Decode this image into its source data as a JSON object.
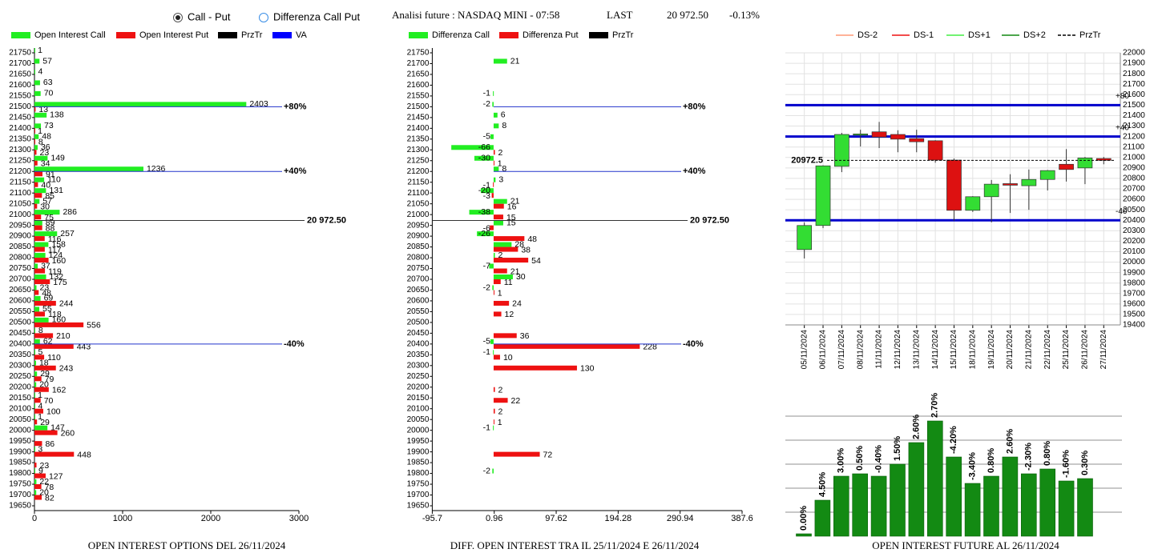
{
  "header": {
    "options": [
      "Call - Put",
      "Differenza Call Put"
    ],
    "selected": 0,
    "title": "Analisi future : NASDAQ MINI - 07:58",
    "last_label": "LAST",
    "last": "20 972.50",
    "change": "-0.13%"
  },
  "chart_data": [
    {
      "type": "hbar",
      "title": "OPEN INTEREST OPTIONS DEL 26/11/2024",
      "categories": [
        21750,
        21700,
        21650,
        21600,
        21550,
        21500,
        21450,
        21400,
        21350,
        21300,
        21250,
        21200,
        21150,
        21100,
        21050,
        21000,
        20950,
        20900,
        20850,
        20800,
        20750,
        20700,
        20650,
        20600,
        20550,
        20500,
        20450,
        20400,
        20350,
        20300,
        20250,
        20200,
        20150,
        20100,
        20050,
        20000,
        19950,
        19900,
        19850,
        19800,
        19750,
        19700,
        19650
      ],
      "series": [
        {
          "name": "Open Interest Call",
          "color": "#22ee22",
          "values": [
            1,
            57,
            4,
            63,
            70,
            2403,
            138,
            73,
            48,
            36,
            149,
            1236,
            110,
            131,
            57,
            286,
            89,
            257,
            158,
            124,
            37,
            132,
            23,
            69,
            55,
            160,
            8,
            62,
            5,
            18,
            29,
            20,
            1,
            4,
            1,
            147,
            null,
            3,
            null,
            9,
            22,
            20,
            null
          ]
        },
        {
          "name": "Open Interest Put",
          "color": "#ee1111",
          "values": [
            null,
            null,
            null,
            null,
            null,
            13,
            null,
            1,
            8,
            23,
            34,
            91,
            40,
            85,
            30,
            75,
            88,
            116,
            117,
            160,
            119,
            175,
            48,
            244,
            118,
            556,
            210,
            443,
            110,
            243,
            79,
            162,
            70,
            100,
            29,
            260,
            86,
            448,
            23,
            127,
            78,
            82,
            null
          ]
        }
      ],
      "legend_extra": [
        {
          "name": "PrzTr",
          "color": "#000000"
        },
        {
          "name": "VA",
          "color": "#0000ff"
        }
      ],
      "xlim": [
        0,
        3000
      ],
      "xticks": [
        0,
        1000,
        2000,
        3000
      ],
      "levels": [
        {
          "value": 21500,
          "label": "+80%"
        },
        {
          "value": 21200,
          "label": "+40%"
        },
        {
          "value": 20400,
          "label": "-40%"
        }
      ],
      "price": {
        "value": 20972.5,
        "label": "20 972.50"
      }
    },
    {
      "type": "hbar",
      "title": "DIFF. OPEN INTEREST TRA IL 25/11/2024 E 26/11/2024",
      "categories": [
        21750,
        21700,
        21650,
        21600,
        21550,
        21500,
        21450,
        21400,
        21350,
        21300,
        21250,
        21200,
        21150,
        21100,
        21050,
        21000,
        20950,
        20900,
        20850,
        20800,
        20750,
        20700,
        20650,
        20600,
        20550,
        20500,
        20450,
        20400,
        20350,
        20300,
        20250,
        20200,
        20150,
        20100,
        20050,
        20000,
        19950,
        19900,
        19850,
        19800,
        19750,
        19700,
        19650
      ],
      "series": [
        {
          "name": "Differenza Call",
          "color": "#22ee22",
          "values": [
            null,
            21,
            null,
            null,
            -1,
            -2,
            6,
            8,
            -5,
            -66,
            -30,
            8,
            3,
            -20,
            21,
            -38,
            15,
            -26,
            28,
            2,
            -7,
            30,
            -2,
            null,
            null,
            null,
            null,
            -5,
            -1,
            null,
            null,
            null,
            null,
            null,
            null,
            -1,
            null,
            null,
            null,
            -2,
            null,
            null,
            null
          ]
        },
        {
          "name": "Differenza Put",
          "color": "#ee1111",
          "values": [
            null,
            null,
            null,
            null,
            null,
            null,
            null,
            null,
            null,
            2,
            1,
            null,
            -1,
            -3,
            16,
            15,
            -6,
            48,
            38,
            54,
            21,
            11,
            1,
            24,
            12,
            null,
            36,
            228,
            10,
            130,
            null,
            2,
            22,
            2,
            1,
            null,
            null,
            72,
            null,
            null,
            null,
            null,
            null
          ]
        }
      ],
      "legend_extra": [
        {
          "name": "PrzTr",
          "color": "#000000"
        }
      ],
      "xlim": [
        -95.7,
        387.6
      ],
      "xticks": [
        -95.7,
        0.96,
        97.62,
        194.28,
        290.94,
        387.6
      ],
      "levels": [
        {
          "value": 21500,
          "label": "+80%"
        },
        {
          "value": 21200,
          "label": "+40%"
        },
        {
          "value": 20400,
          "label": "-40%"
        }
      ],
      "price": {
        "value": 20972.5,
        "label": "20 972.50"
      }
    },
    {
      "type": "candlestick",
      "categories": [
        "05/11/2024",
        "06/11/2024",
        "07/11/2024",
        "08/11/2024",
        "11/11/2024",
        "12/11/2024",
        "13/11/2024",
        "14/11/2024",
        "15/11/2024",
        "18/11/2024",
        "19/11/2024",
        "20/11/2024",
        "21/11/2024",
        "22/11/2024",
        "25/11/2024",
        "26/11/2024",
        "27/11/2024"
      ],
      "open": [
        20120,
        20350,
        20915,
        21220,
        21245,
        21220,
        21180,
        21160,
        20975,
        20495,
        20625,
        20750,
        20730,
        20790,
        20935,
        20900,
        20990
      ],
      "high": [
        20380,
        20925,
        21235,
        21265,
        21340,
        21260,
        21265,
        21165,
        20990,
        20630,
        20785,
        20840,
        20885,
        20880,
        21080,
        21005,
        21005
      ],
      "low": [
        20035,
        20325,
        20860,
        21105,
        21090,
        21050,
        21050,
        20950,
        20395,
        20480,
        20380,
        20470,
        20500,
        20685,
        20770,
        20745,
        20935
      ],
      "close": [
        20350,
        20920,
        21220,
        21225,
        21195,
        21175,
        21150,
        20975,
        20495,
        20625,
        20745,
        20735,
        20790,
        20875,
        20885,
        20995,
        20972.5
      ],
      "up_color": "#33dd33",
      "down_color": "#dd1111",
      "legend": [
        {
          "name": "DS-2",
          "color": "#ff9977",
          "dash": false
        },
        {
          "name": "DS-1",
          "color": "#ee1111",
          "dash": false
        },
        {
          "name": "DS+1",
          "color": "#44ee44",
          "dash": false
        },
        {
          "name": "DS+2",
          "color": "#118811",
          "dash": false
        },
        {
          "name": "PrzTr",
          "color": "#000000",
          "dash": true
        }
      ],
      "ylim": [
        19400,
        22000
      ],
      "yticks": [
        19400,
        19500,
        19600,
        19700,
        19800,
        19900,
        20000,
        20100,
        20200,
        20300,
        20400,
        20500,
        20600,
        20700,
        20800,
        20900,
        21000,
        21100,
        21200,
        21300,
        21400,
        21500,
        21600,
        21700,
        21800,
        21900,
        22000
      ],
      "grid": true,
      "levels": [
        {
          "value": 21500,
          "label": "+80"
        },
        {
          "value": 21200,
          "label": "+40"
        },
        {
          "value": 20400,
          "label": "-40"
        }
      ],
      "price": {
        "value": 20972.5,
        "label": "20972.5"
      }
    },
    {
      "type": "bar",
      "title": "OPEN INTEREST FUTURE AL 26/11/2024",
      "values": [
        0.1,
        1.5,
        2.5,
        2.6,
        2.5,
        3.0,
        3.9,
        4.8,
        3.3,
        2.2,
        2.5,
        3.3,
        2.6,
        2.8,
        2.3,
        2.4
      ],
      "bar_labels": [
        "0.00%",
        "4.50%",
        "3.00%",
        "0.50%",
        "-0.40%",
        "1.50%",
        "2.60%",
        "2.70%",
        "-4.20%",
        "-3.40%",
        "0.80%",
        "2.60%",
        "-2.30%",
        "0.80%",
        "-1.60%",
        "0.30%"
      ],
      "color": "#138a13",
      "ylim": [
        0,
        5
      ],
      "ygrid": [
        1,
        2,
        3,
        4,
        5
      ]
    }
  ]
}
